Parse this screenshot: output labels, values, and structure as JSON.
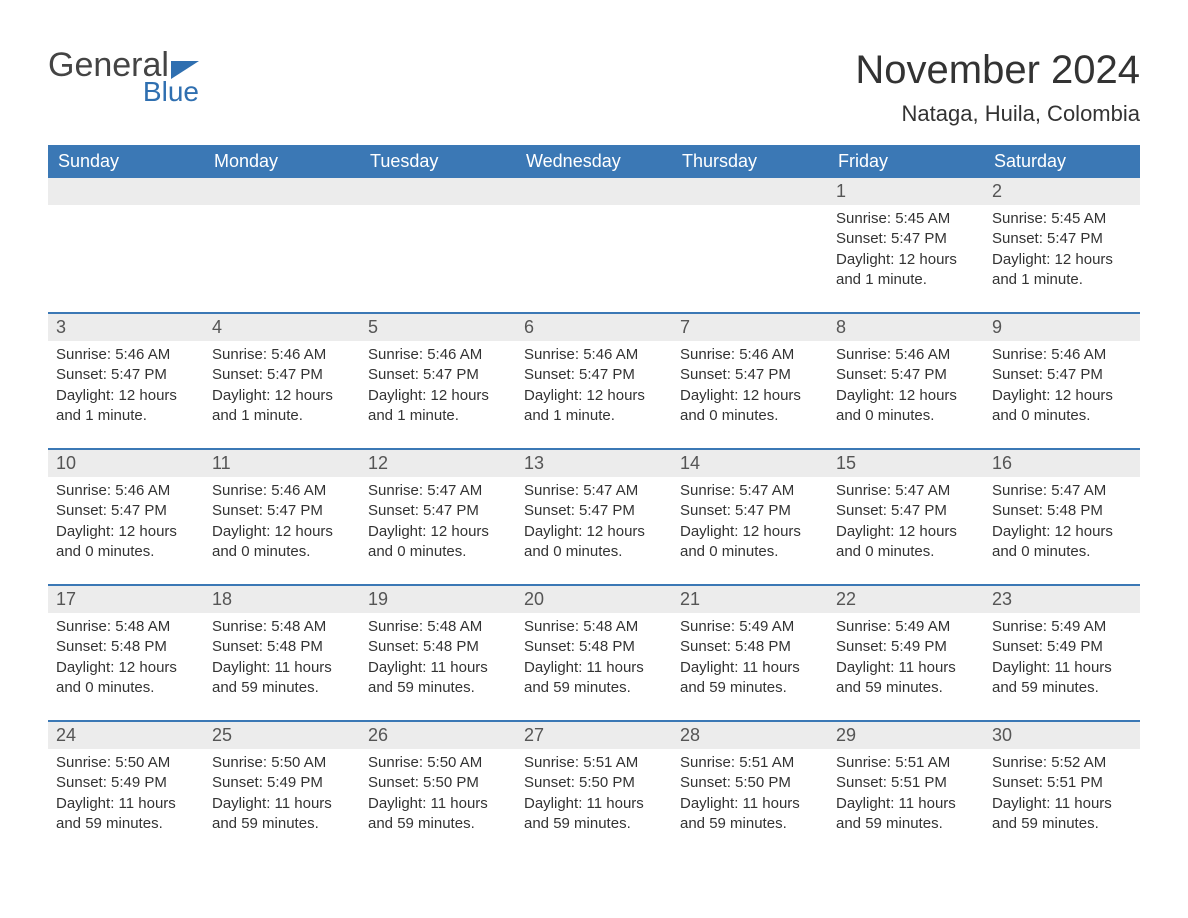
{
  "logo": {
    "word1": "General",
    "word2": "Blue"
  },
  "header": {
    "month_title": "November 2024",
    "location": "Nataga, Huila, Colombia"
  },
  "colors": {
    "brand_blue": "#2f6fb0",
    "header_bar": "#3b78b5",
    "week_border": "#3b78b5",
    "day_number_bg": "#ececec",
    "text": "#333333",
    "background": "#ffffff"
  },
  "weekdays": [
    "Sunday",
    "Monday",
    "Tuesday",
    "Wednesday",
    "Thursday",
    "Friday",
    "Saturday"
  ],
  "labels": {
    "sunrise_prefix": "Sunrise: ",
    "sunset_prefix": "Sunset: ",
    "daylight_prefix": "Daylight: "
  },
  "weeks": [
    [
      {
        "empty": true
      },
      {
        "empty": true
      },
      {
        "empty": true
      },
      {
        "empty": true
      },
      {
        "empty": true
      },
      {
        "day": "1",
        "sunrise": "5:45 AM",
        "sunset": "5:47 PM",
        "daylight": "12 hours and 1 minute."
      },
      {
        "day": "2",
        "sunrise": "5:45 AM",
        "sunset": "5:47 PM",
        "daylight": "12 hours and 1 minute."
      }
    ],
    [
      {
        "day": "3",
        "sunrise": "5:46 AM",
        "sunset": "5:47 PM",
        "daylight": "12 hours and 1 minute."
      },
      {
        "day": "4",
        "sunrise": "5:46 AM",
        "sunset": "5:47 PM",
        "daylight": "12 hours and 1 minute."
      },
      {
        "day": "5",
        "sunrise": "5:46 AM",
        "sunset": "5:47 PM",
        "daylight": "12 hours and 1 minute."
      },
      {
        "day": "6",
        "sunrise": "5:46 AM",
        "sunset": "5:47 PM",
        "daylight": "12 hours and 1 minute."
      },
      {
        "day": "7",
        "sunrise": "5:46 AM",
        "sunset": "5:47 PM",
        "daylight": "12 hours and 0 minutes."
      },
      {
        "day": "8",
        "sunrise": "5:46 AM",
        "sunset": "5:47 PM",
        "daylight": "12 hours and 0 minutes."
      },
      {
        "day": "9",
        "sunrise": "5:46 AM",
        "sunset": "5:47 PM",
        "daylight": "12 hours and 0 minutes."
      }
    ],
    [
      {
        "day": "10",
        "sunrise": "5:46 AM",
        "sunset": "5:47 PM",
        "daylight": "12 hours and 0 minutes."
      },
      {
        "day": "11",
        "sunrise": "5:46 AM",
        "sunset": "5:47 PM",
        "daylight": "12 hours and 0 minutes."
      },
      {
        "day": "12",
        "sunrise": "5:47 AM",
        "sunset": "5:47 PM",
        "daylight": "12 hours and 0 minutes."
      },
      {
        "day": "13",
        "sunrise": "5:47 AM",
        "sunset": "5:47 PM",
        "daylight": "12 hours and 0 minutes."
      },
      {
        "day": "14",
        "sunrise": "5:47 AM",
        "sunset": "5:47 PM",
        "daylight": "12 hours and 0 minutes."
      },
      {
        "day": "15",
        "sunrise": "5:47 AM",
        "sunset": "5:47 PM",
        "daylight": "12 hours and 0 minutes."
      },
      {
        "day": "16",
        "sunrise": "5:47 AM",
        "sunset": "5:48 PM",
        "daylight": "12 hours and 0 minutes."
      }
    ],
    [
      {
        "day": "17",
        "sunrise": "5:48 AM",
        "sunset": "5:48 PM",
        "daylight": "12 hours and 0 minutes."
      },
      {
        "day": "18",
        "sunrise": "5:48 AM",
        "sunset": "5:48 PM",
        "daylight": "11 hours and 59 minutes."
      },
      {
        "day": "19",
        "sunrise": "5:48 AM",
        "sunset": "5:48 PM",
        "daylight": "11 hours and 59 minutes."
      },
      {
        "day": "20",
        "sunrise": "5:48 AM",
        "sunset": "5:48 PM",
        "daylight": "11 hours and 59 minutes."
      },
      {
        "day": "21",
        "sunrise": "5:49 AM",
        "sunset": "5:48 PM",
        "daylight": "11 hours and 59 minutes."
      },
      {
        "day": "22",
        "sunrise": "5:49 AM",
        "sunset": "5:49 PM",
        "daylight": "11 hours and 59 minutes."
      },
      {
        "day": "23",
        "sunrise": "5:49 AM",
        "sunset": "5:49 PM",
        "daylight": "11 hours and 59 minutes."
      }
    ],
    [
      {
        "day": "24",
        "sunrise": "5:50 AM",
        "sunset": "5:49 PM",
        "daylight": "11 hours and 59 minutes."
      },
      {
        "day": "25",
        "sunrise": "5:50 AM",
        "sunset": "5:49 PM",
        "daylight": "11 hours and 59 minutes."
      },
      {
        "day": "26",
        "sunrise": "5:50 AM",
        "sunset": "5:50 PM",
        "daylight": "11 hours and 59 minutes."
      },
      {
        "day": "27",
        "sunrise": "5:51 AM",
        "sunset": "5:50 PM",
        "daylight": "11 hours and 59 minutes."
      },
      {
        "day": "28",
        "sunrise": "5:51 AM",
        "sunset": "5:50 PM",
        "daylight": "11 hours and 59 minutes."
      },
      {
        "day": "29",
        "sunrise": "5:51 AM",
        "sunset": "5:51 PM",
        "daylight": "11 hours and 59 minutes."
      },
      {
        "day": "30",
        "sunrise": "5:52 AM",
        "sunset": "5:51 PM",
        "daylight": "11 hours and 59 minutes."
      }
    ]
  ]
}
